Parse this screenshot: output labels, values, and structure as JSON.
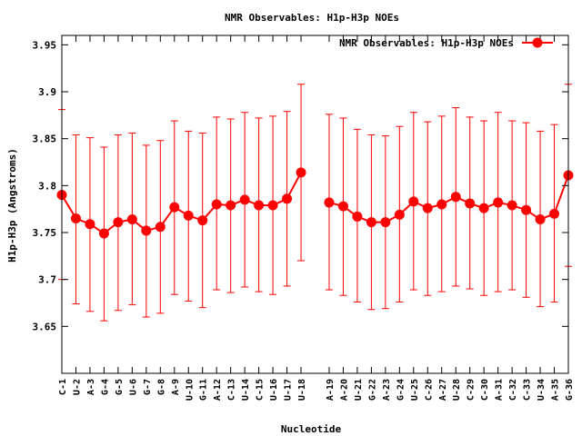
{
  "chart_data": {
    "type": "line",
    "title": "NMR Observables: H1p-H3p NOEs",
    "xlabel": "Nucleotide",
    "ylabel": "H1p-H3p (Angstroms)",
    "ylim": [
      3.6,
      3.96
    ],
    "yticks": [
      "3.65",
      "3.7",
      "3.75",
      "3.8",
      "3.85",
      "3.9",
      "3.95"
    ],
    "grid": false,
    "legend_position": "top-right",
    "series": [
      {
        "name": "NMR Observables: H1p-H3p NOEs",
        "color": "#ff0000",
        "marker": "circle",
        "error_bars": true,
        "points": [
          {
            "x": "C-1",
            "y": 3.79,
            "low": 3.7,
            "high": 3.881
          },
          {
            "x": "U-2",
            "y": 3.765,
            "low": 3.674,
            "high": 3.854
          },
          {
            "x": "A-3",
            "y": 3.759,
            "low": 3.666,
            "high": 3.851
          },
          {
            "x": "G-4",
            "y": 3.749,
            "low": 3.656,
            "high": 3.841
          },
          {
            "x": "G-5",
            "y": 3.761,
            "low": 3.667,
            "high": 3.854
          },
          {
            "x": "U-6",
            "y": 3.764,
            "low": 3.673,
            "high": 3.856
          },
          {
            "x": "G-7",
            "y": 3.752,
            "low": 3.66,
            "high": 3.843
          },
          {
            "x": "G-8",
            "y": 3.756,
            "low": 3.664,
            "high": 3.848
          },
          {
            "x": "A-9",
            "y": 3.777,
            "low": 3.684,
            "high": 3.869
          },
          {
            "x": "U-10",
            "y": 3.768,
            "low": 3.677,
            "high": 3.858
          },
          {
            "x": "G-11",
            "y": 3.763,
            "low": 3.67,
            "high": 3.856
          },
          {
            "x": "A-12",
            "y": 3.78,
            "low": 3.689,
            "high": 3.873
          },
          {
            "x": "C-13",
            "y": 3.779,
            "low": 3.686,
            "high": 3.871
          },
          {
            "x": "U-14",
            "y": 3.785,
            "low": 3.692,
            "high": 3.878
          },
          {
            "x": "C-15",
            "y": 3.779,
            "low": 3.687,
            "high": 3.872
          },
          {
            "x": "U-16",
            "y": 3.779,
            "low": 3.684,
            "high": 3.874
          },
          {
            "x": "U-17",
            "y": 3.786,
            "low": 3.693,
            "high": 3.879
          },
          {
            "x": "U-18",
            "y": 3.814,
            "low": 3.72,
            "high": 3.908
          },
          {
            "x": "",
            "y": null,
            "low": null,
            "high": null
          },
          {
            "x": "A-19",
            "y": 3.782,
            "low": 3.689,
            "high": 3.876
          },
          {
            "x": "A-20",
            "y": 3.778,
            "low": 3.683,
            "high": 3.872
          },
          {
            "x": "U-21",
            "y": 3.767,
            "low": 3.676,
            "high": 3.86
          },
          {
            "x": "G-22",
            "y": 3.761,
            "low": 3.668,
            "high": 3.854
          },
          {
            "x": "A-23",
            "y": 3.761,
            "low": 3.669,
            "high": 3.853
          },
          {
            "x": "G-24",
            "y": 3.769,
            "low": 3.676,
            "high": 3.863
          },
          {
            "x": "U-25",
            "y": 3.783,
            "low": 3.689,
            "high": 3.878
          },
          {
            "x": "C-26",
            "y": 3.776,
            "low": 3.683,
            "high": 3.868
          },
          {
            "x": "A-27",
            "y": 3.78,
            "low": 3.687,
            "high": 3.874
          },
          {
            "x": "U-28",
            "y": 3.788,
            "low": 3.693,
            "high": 3.883
          },
          {
            "x": "C-29",
            "y": 3.781,
            "low": 3.69,
            "high": 3.873
          },
          {
            "x": "C-30",
            "y": 3.776,
            "low": 3.683,
            "high": 3.869
          },
          {
            "x": "A-31",
            "y": 3.782,
            "low": 3.687,
            "high": 3.878
          },
          {
            "x": "C-32",
            "y": 3.779,
            "low": 3.689,
            "high": 3.869
          },
          {
            "x": "C-33",
            "y": 3.774,
            "low": 3.681,
            "high": 3.867
          },
          {
            "x": "U-34",
            "y": 3.764,
            "low": 3.671,
            "high": 3.858
          },
          {
            "x": "A-35",
            "y": 3.77,
            "low": 3.676,
            "high": 3.865
          },
          {
            "x": "G-36",
            "y": 3.811,
            "low": 3.714,
            "high": 3.908
          }
        ]
      }
    ]
  }
}
